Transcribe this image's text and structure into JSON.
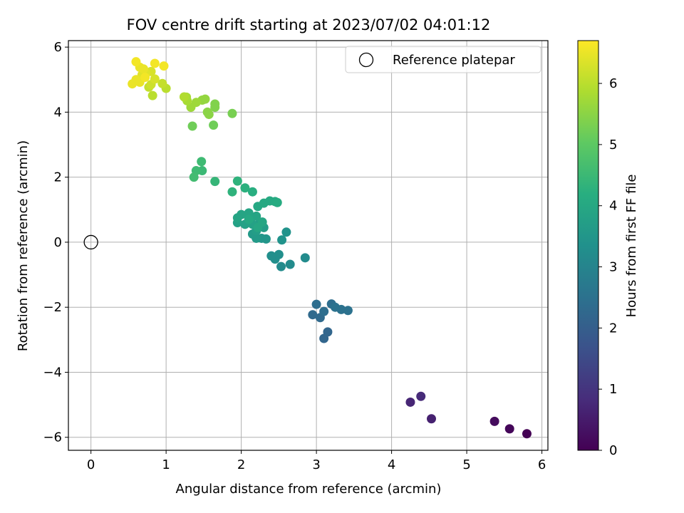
{
  "chart_data": {
    "type": "scatter",
    "title": "FOV centre drift starting at 2023/07/02 04:01:12",
    "xlabel": "Angular distance from reference (arcmin)",
    "ylabel": "Rotation from reference (arcmin)",
    "xlim": [
      -0.3,
      6.08
    ],
    "ylim": [
      -6.4,
      6.2
    ],
    "xticks": [
      "0",
      "1",
      "2",
      "3",
      "4",
      "5",
      "6"
    ],
    "yticks": [
      "−6",
      "−4",
      "−2",
      "0",
      "2",
      "4",
      "6"
    ],
    "grid": true,
    "legend": {
      "placement": "top-right",
      "entries": [
        "Reference platepar"
      ]
    },
    "reference_point": {
      "x": 0,
      "y": 0
    },
    "colorbar": {
      "label": "Hours from first FF file",
      "colormap": "viridis",
      "range": [
        0,
        6.7
      ],
      "ticks": [
        "0",
        "1",
        "2",
        "3",
        "4",
        "5",
        "6"
      ]
    },
    "points": [
      [
        5.8,
        -5.89,
        0.0
      ],
      [
        5.57,
        -5.74,
        0.1
      ],
      [
        5.37,
        -5.51,
        0.2
      ],
      [
        4.53,
        -5.43,
        0.6
      ],
      [
        4.25,
        -4.92,
        0.7
      ],
      [
        4.39,
        -4.74,
        0.8
      ],
      [
        3.1,
        -2.96,
        2.2
      ],
      [
        3.15,
        -2.76,
        2.2
      ],
      [
        2.95,
        -2.23,
        2.3
      ],
      [
        3.05,
        -2.32,
        2.3
      ],
      [
        3.1,
        -2.13,
        2.4
      ],
      [
        3.0,
        -1.91,
        2.4
      ],
      [
        3.2,
        -1.9,
        2.4
      ],
      [
        3.25,
        -2.0,
        2.5
      ],
      [
        3.33,
        -2.07,
        2.5
      ],
      [
        3.42,
        -2.1,
        2.5
      ],
      [
        2.85,
        -0.48,
        3.2
      ],
      [
        2.65,
        -0.68,
        3.2
      ],
      [
        2.53,
        -0.75,
        3.2
      ],
      [
        2.45,
        -0.52,
        3.3
      ],
      [
        2.4,
        -0.42,
        3.3
      ],
      [
        2.5,
        -0.38,
        3.3
      ],
      [
        2.54,
        0.07,
        3.4
      ],
      [
        2.6,
        0.31,
        3.4
      ],
      [
        2.33,
        0.1,
        3.5
      ],
      [
        2.27,
        0.12,
        3.5
      ],
      [
        2.2,
        0.12,
        3.6
      ],
      [
        2.15,
        0.25,
        3.6
      ],
      [
        2.2,
        0.35,
        3.7
      ],
      [
        2.3,
        0.45,
        3.7
      ],
      [
        2.25,
        0.6,
        3.7
      ],
      [
        2.15,
        0.55,
        3.8
      ],
      [
        2.05,
        0.55,
        3.8
      ],
      [
        1.95,
        0.6,
        3.8
      ],
      [
        1.95,
        0.75,
        3.9
      ],
      [
        2.0,
        0.85,
        3.9
      ],
      [
        2.1,
        0.9,
        3.9
      ],
      [
        2.2,
        0.8,
        3.9
      ],
      [
        2.28,
        0.62,
        3.95
      ],
      [
        2.22,
        0.45,
        3.95
      ],
      [
        2.1,
        0.7,
        4.0
      ],
      [
        2.22,
        1.1,
        4.0
      ],
      [
        2.3,
        1.2,
        4.05
      ],
      [
        2.38,
        1.27,
        4.05
      ],
      [
        2.45,
        1.25,
        4.05
      ],
      [
        2.48,
        1.22,
        4.1
      ],
      [
        2.15,
        1.55,
        4.2
      ],
      [
        2.05,
        1.67,
        4.25
      ],
      [
        1.95,
        1.88,
        4.3
      ],
      [
        1.88,
        1.55,
        4.3
      ],
      [
        1.65,
        1.87,
        4.4
      ],
      [
        1.48,
        2.2,
        4.5
      ],
      [
        1.4,
        2.2,
        4.55
      ],
      [
        1.47,
        2.48,
        4.55
      ],
      [
        1.37,
        2.0,
        4.6
      ],
      [
        1.35,
        3.57,
        5.2
      ],
      [
        1.63,
        3.6,
        5.2
      ],
      [
        1.88,
        3.96,
        5.3
      ],
      [
        1.65,
        4.15,
        5.4
      ],
      [
        1.65,
        4.25,
        5.4
      ],
      [
        1.55,
        4.0,
        5.5
      ],
      [
        1.57,
        3.93,
        5.5
      ],
      [
        1.52,
        4.4,
        5.6
      ],
      [
        1.48,
        4.37,
        5.6
      ],
      [
        1.4,
        4.3,
        5.7
      ],
      [
        1.33,
        4.15,
        5.7
      ],
      [
        1.28,
        4.35,
        5.8
      ],
      [
        1.27,
        4.46,
        5.8
      ],
      [
        1.24,
        4.47,
        5.9
      ],
      [
        1.0,
        4.73,
        6.0
      ],
      [
        0.95,
        4.88,
        6.1
      ],
      [
        0.82,
        4.51,
        6.0
      ],
      [
        0.77,
        4.77,
        6.1
      ],
      [
        0.8,
        4.85,
        6.2
      ],
      [
        0.85,
        5.02,
        6.3
      ],
      [
        0.8,
        5.25,
        6.3
      ],
      [
        0.73,
        5.2,
        6.4
      ],
      [
        0.68,
        5.15,
        6.4
      ],
      [
        0.7,
        5.33,
        6.5
      ],
      [
        0.65,
        5.38,
        6.5
      ],
      [
        0.6,
        5.55,
        6.6
      ],
      [
        0.85,
        5.5,
        6.6
      ],
      [
        0.97,
        5.42,
        6.6
      ],
      [
        0.55,
        4.87,
        6.5
      ],
      [
        0.6,
        5.0,
        6.5
      ],
      [
        0.65,
        4.92,
        6.5
      ],
      [
        0.72,
        5.07,
        6.6
      ]
    ]
  }
}
